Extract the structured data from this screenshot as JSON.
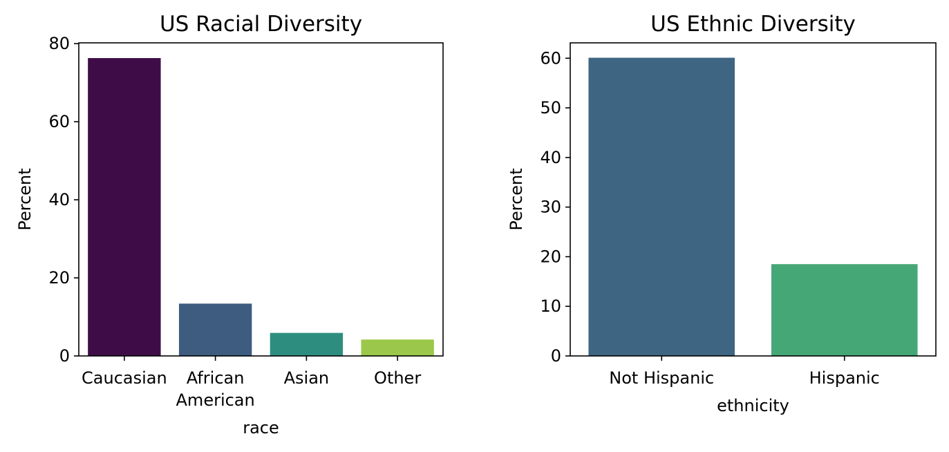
{
  "chart_data": [
    {
      "type": "bar",
      "title": "US Racial Diversity",
      "xlabel": "race",
      "ylabel": "Percent",
      "categories": [
        "Caucasian",
        "African\nAmerican",
        "Asian",
        "Other"
      ],
      "values": [
        76.3,
        13.4,
        5.9,
        4.2
      ],
      "colors": [
        "#3e0d47",
        "#3e5c80",
        "#2d8e80",
        "#9bc84a"
      ],
      "yticks": [
        0,
        20,
        40,
        60,
        80
      ],
      "ylim": [
        0,
        80.2
      ],
      "grid": false
    },
    {
      "type": "bar",
      "title": "US Ethnic Diversity",
      "xlabel": "ethnicity",
      "ylabel": "Percent",
      "categories": [
        "Not Hispanic",
        "Hispanic"
      ],
      "values": [
        60.1,
        18.5
      ],
      "colors": [
        "#3e6683",
        "#46a776"
      ],
      "yticks": [
        0,
        10,
        20,
        30,
        40,
        50,
        60
      ],
      "ylim": [
        0,
        63.1
      ],
      "grid": false
    }
  ]
}
